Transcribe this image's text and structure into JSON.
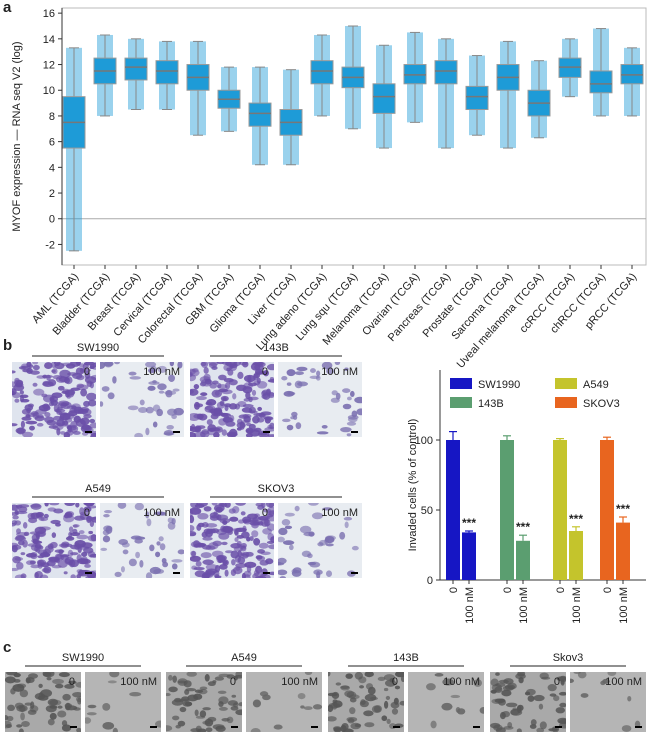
{
  "panel_labels": [
    "a",
    "b",
    "c"
  ],
  "chart_data": [
    {
      "type": "box",
      "ylabel": "MYOF expression — RNA seq V2 (log)",
      "categories": [
        "AML (TCGA)",
        "Bladder (TCGA)",
        "Breast (TCGA)",
        "Cervical (TCGA)",
        "Colorectal (TCGA)",
        "GBM (TCGA)",
        "Glioma (TCGA)",
        "Liver (TCGA)",
        "Lung adeno (TCGA)",
        "Lung squ (TCGA)",
        "Melanoma (TCGA)",
        "Ovarian (TCGA)",
        "Pancreas (TCGA)",
        "Prostate (TCGA)",
        "Sarcoma (TCGA)",
        "Uveal melanoma (TCGA)",
        "ccRCC (TCGA)",
        "chRCC (TCGA)",
        "pRCC (TCGA)"
      ],
      "min": [
        -2.5,
        8,
        8.5,
        8.5,
        6.5,
        6.8,
        4.2,
        4.2,
        8,
        7,
        5.5,
        7.5,
        5.5,
        6.5,
        5.5,
        6.3,
        9.5,
        8,
        8
      ],
      "q1": [
        5.5,
        10.5,
        10.8,
        10.5,
        10,
        8.6,
        7.2,
        6.5,
        10.5,
        10.2,
        8.2,
        10.5,
        10.5,
        8.5,
        10,
        8,
        11,
        9.8,
        10.5
      ],
      "median": [
        7.5,
        11.5,
        11.8,
        11.5,
        11,
        9.3,
        8.2,
        7.5,
        11.5,
        11,
        9.5,
        11.2,
        11.5,
        9.5,
        11,
        9,
        11.8,
        10.5,
        11.2
      ],
      "q3": [
        9.5,
        12.5,
        12.5,
        12.3,
        12,
        10,
        9,
        8.5,
        12.3,
        11.8,
        10.5,
        12,
        12.3,
        10.3,
        12,
        10,
        12.5,
        11.5,
        12
      ],
      "max": [
        13.3,
        14.3,
        14,
        13.8,
        13.8,
        11.8,
        11.8,
        11.6,
        14.3,
        15,
        13.5,
        14.5,
        14,
        12.7,
        13.8,
        12.3,
        14,
        14.8,
        13.3
      ],
      "color": "#1e9bd7",
      "ylim": [
        -3.6,
        16.4
      ],
      "yticks": [
        -2,
        0,
        2,
        4,
        6,
        8,
        10,
        12,
        14,
        16
      ]
    },
    {
      "type": "bar",
      "ylabel": "Invaded cells (% of control)",
      "categories": [
        "0",
        "100 nM"
      ],
      "series": [
        {
          "name": "SW1990",
          "color": "#1616c4",
          "values": [
            100,
            34
          ],
          "errors": [
            6,
            1
          ],
          "significance": "***"
        },
        {
          "name": "143B",
          "color": "#5b9e70",
          "values": [
            100,
            28
          ],
          "errors": [
            3,
            4
          ],
          "significance": "***"
        },
        {
          "name": "A549",
          "color": "#c4c42c",
          "values": [
            100,
            35
          ],
          "errors": [
            1,
            3
          ],
          "significance": "***"
        },
        {
          "name": "SKOV3",
          "color": "#e8651f",
          "values": [
            100,
            41
          ],
          "errors": [
            2,
            4
          ],
          "significance": "***"
        }
      ],
      "ylim": [
        0,
        150
      ],
      "yticks": [
        0,
        50,
        100
      ]
    }
  ],
  "images_b": [
    {
      "title": "SW1990",
      "left": "0",
      "right": "100 nM"
    },
    {
      "title": "143B",
      "left": "0",
      "right": "100 nM"
    },
    {
      "title": "A549",
      "left": "0",
      "right": "100 nM"
    },
    {
      "title": "SKOV3",
      "left": "0",
      "right": "100 nM"
    }
  ],
  "images_c": [
    {
      "title": "SW1990",
      "left": "0",
      "right": "100 nM"
    },
    {
      "title": "A549",
      "left": "0",
      "right": "100 nM"
    },
    {
      "title": "143B",
      "left": "0",
      "right": "100 nM"
    },
    {
      "title": "Skov3",
      "left": "0",
      "right": "100 nM"
    }
  ]
}
